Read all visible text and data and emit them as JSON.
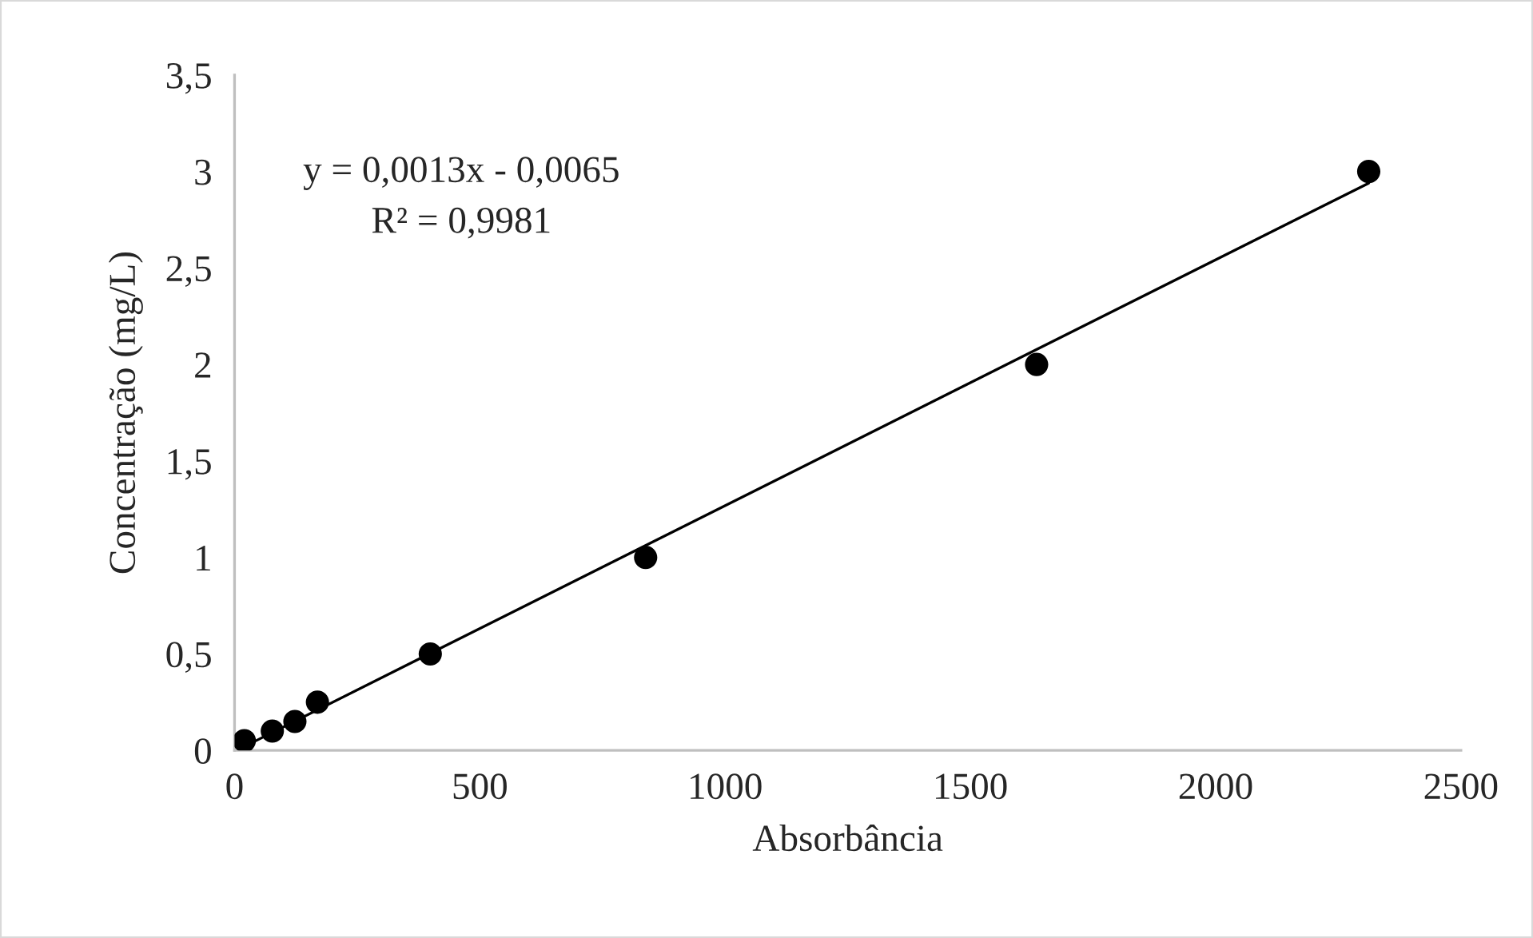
{
  "chart_data": {
    "type": "scatter",
    "xlabel": "Absorbância",
    "ylabel": "Concentração (mg/L)",
    "series": [
      {
        "marker": "circle",
        "color": "#000000",
        "x": [
          20,
          77,
          123,
          169,
          399,
          838,
          1635,
          2312
        ],
        "values": [
          0.05,
          0.1,
          0.15,
          0.25,
          0.5,
          1,
          2,
          3
        ]
      },
      {
        "type": "line",
        "marker": "none",
        "color": "#000000",
        "x": [
          20,
          2312
        ],
        "values": [
          0.02,
          2.94
        ]
      }
    ],
    "xlim": [
      0,
      2500
    ],
    "xticks": [
      0,
      500,
      1000,
      1500,
      2000,
      2500
    ],
    "ylim": [
      0,
      3.5
    ],
    "yticks": [
      0,
      {
        "value": 0.5,
        "label": "0,5"
      },
      1,
      {
        "value": 1.5,
        "label": "1,5"
      },
      2,
      {
        "value": 2.5,
        "label": "2,5"
      },
      3,
      {
        "value": 3.5,
        "label": "3,5"
      }
    ],
    "grid": false,
    "legend": false,
    "annotations": [
      "y = 0,0013x - 0,0065",
      "R² = 0,9981"
    ]
  }
}
